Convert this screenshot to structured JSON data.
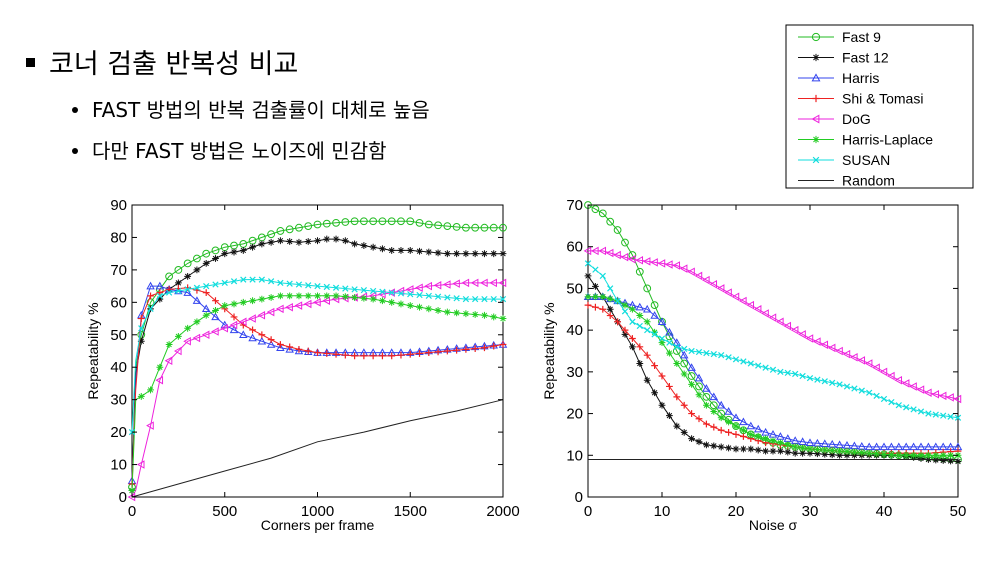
{
  "heading": "코너 검출 반복성 비교",
  "bullets": [
    "FAST 방법의 반복 검출률이 대체로 높음",
    "다만 FAST 방법은 노이즈에 민감함"
  ],
  "legend": [
    {
      "name": "Fast 9",
      "color": "#22bb22",
      "marker": "circle"
    },
    {
      "name": "Fast 12",
      "color": "#111111",
      "marker": "star"
    },
    {
      "name": "Harris",
      "color": "#3344ee",
      "marker": "triangle-up"
    },
    {
      "name": "Shi & Tomasi",
      "color": "#ee2222",
      "marker": "plus"
    },
    {
      "name": "DoG",
      "color": "#ee22dd",
      "marker": "triangle-left"
    },
    {
      "name": "Harris-Laplace",
      "color": "#22cc22",
      "marker": "star"
    },
    {
      "name": "SUSAN",
      "color": "#11dddd",
      "marker": "x"
    },
    {
      "name": "Random",
      "color": "#222222",
      "marker": "none"
    }
  ],
  "chart_data": [
    {
      "type": "line",
      "title": "",
      "xlabel": "Corners per frame",
      "ylabel": "Repeatability %",
      "xlim": [
        0,
        2000
      ],
      "ylim": [
        0,
        90
      ],
      "xticks": [
        0,
        500,
        1000,
        1500,
        2000
      ],
      "yticks": [
        0,
        10,
        20,
        30,
        40,
        50,
        60,
        70,
        80,
        90
      ],
      "series": [
        {
          "name": "Fast 9",
          "x": [
            0,
            20,
            50,
            100,
            200,
            300,
            400,
            500,
            600,
            700,
            800,
            900,
            1000,
            1100,
            1200,
            1300,
            1400,
            1500,
            1600,
            1700,
            1800,
            1900,
            2000
          ],
          "y": [
            3,
            40,
            50,
            60,
            68,
            72,
            75,
            77,
            78,
            80,
            82,
            83,
            84,
            84.5,
            85,
            85,
            85,
            85,
            84,
            83.5,
            83,
            83,
            83
          ]
        },
        {
          "name": "Fast 12",
          "x": [
            0,
            20,
            50,
            100,
            200,
            300,
            400,
            500,
            600,
            700,
            800,
            900,
            1000,
            1050,
            1100,
            1150,
            1200,
            1300,
            1400,
            1500,
            1600,
            1700,
            1800,
            1900,
            2000
          ],
          "y": [
            2,
            38,
            48,
            58,
            64,
            68,
            72,
            75,
            76,
            78,
            79,
            78.5,
            79,
            79.5,
            79.5,
            79,
            78,
            77,
            76,
            76,
            75.5,
            75,
            75,
            75,
            75
          ]
        },
        {
          "name": "Harris",
          "x": [
            0,
            20,
            50,
            100,
            150,
            200,
            300,
            400,
            500,
            600,
            700,
            800,
            900,
            1000,
            1100,
            1200,
            1300,
            1400,
            1500,
            1600,
            1700,
            1800,
            1900,
            2000
          ],
          "y": [
            5,
            35,
            56,
            65,
            65,
            64,
            63,
            58,
            53,
            50,
            48,
            46,
            45,
            44.5,
            44.5,
            44.5,
            44.5,
            44.5,
            44.5,
            45,
            45.5,
            46,
            46.5,
            47
          ]
        },
        {
          "name": "Shi & Tomasi",
          "x": [
            0,
            20,
            50,
            100,
            200,
            300,
            400,
            500,
            600,
            700,
            800,
            900,
            1000,
            1100,
            1200,
            1300,
            1400,
            1500,
            1600,
            1700,
            1800,
            1900,
            2000
          ],
          "y": [
            4,
            33,
            55,
            62,
            64,
            64.5,
            63,
            58,
            53,
            50,
            47,
            45.5,
            44.5,
            44,
            43.5,
            43.5,
            43.5,
            44,
            44.5,
            45,
            45.5,
            46,
            47
          ]
        },
        {
          "name": "DoG",
          "x": [
            0,
            20,
            50,
            100,
            150,
            200,
            300,
            400,
            500,
            600,
            700,
            800,
            900,
            1000,
            1100,
            1200,
            1300,
            1400,
            1500,
            1600,
            1700,
            1800,
            1900,
            2000
          ],
          "y": [
            0,
            2,
            10,
            22,
            36,
            42,
            48,
            50,
            52,
            54,
            56,
            58,
            59,
            60,
            61,
            61.5,
            62,
            63,
            64,
            65,
            65.5,
            66,
            66,
            66
          ]
        },
        {
          "name": "Harris-Laplace",
          "x": [
            0,
            20,
            50,
            100,
            150,
            200,
            300,
            400,
            500,
            600,
            700,
            800,
            900,
            1000,
            1100,
            1200,
            1300,
            1400,
            1500,
            1600,
            1700,
            1800,
            1900,
            2000
          ],
          "y": [
            2,
            30,
            31,
            33,
            40,
            47,
            52,
            56,
            59,
            60,
            61,
            62,
            62,
            62,
            62,
            61.5,
            61,
            60,
            59,
            58,
            57,
            56.5,
            56,
            55
          ]
        },
        {
          "name": "SUSAN",
          "x": [
            0,
            20,
            50,
            100,
            150,
            200,
            300,
            400,
            500,
            600,
            700,
            800,
            900,
            1000,
            1100,
            1200,
            1300,
            1400,
            1500,
            1600,
            1700,
            1800,
            1900,
            2000
          ],
          "y": [
            20,
            42,
            52,
            58,
            62,
            63,
            64,
            65,
            66,
            67,
            67,
            66,
            65.5,
            65,
            64.5,
            64,
            63.5,
            63,
            62.5,
            62,
            61.5,
            61,
            61,
            61
          ]
        },
        {
          "name": "Random",
          "x": [
            0,
            250,
            500,
            750,
            1000,
            1250,
            1500,
            1750,
            2000
          ],
          "y": [
            0,
            4,
            8,
            12,
            17,
            20,
            23.5,
            26.5,
            30
          ]
        }
      ]
    },
    {
      "type": "line",
      "title": "",
      "xlabel": "Noise σ",
      "ylabel": "Repeatability %",
      "xlim": [
        0,
        50
      ],
      "ylim": [
        0,
        70
      ],
      "xticks": [
        0,
        10,
        20,
        30,
        40,
        50
      ],
      "yticks": [
        0,
        10,
        20,
        30,
        40,
        50,
        60,
        70
      ],
      "series": [
        {
          "name": "Fast 9",
          "x": [
            0,
            2,
            4,
            6,
            8,
            10,
            12,
            14,
            16,
            18,
            20,
            22,
            24,
            26,
            28,
            30,
            34,
            38,
            42,
            46,
            50
          ],
          "y": [
            70,
            68,
            64,
            58,
            50,
            42,
            35,
            29,
            24,
            20,
            17,
            15,
            13.5,
            12.5,
            12,
            11.5,
            11,
            10.5,
            10,
            9.5,
            9
          ]
        },
        {
          "name": "Fast 12",
          "x": [
            0,
            2,
            4,
            6,
            8,
            10,
            12,
            14,
            16,
            18,
            20,
            22,
            24,
            26,
            28,
            30,
            34,
            38,
            42,
            46,
            50
          ],
          "y": [
            53,
            48,
            42,
            36,
            28,
            22,
            17,
            14,
            12.5,
            12,
            11.5,
            11.5,
            11,
            11,
            10.5,
            10.5,
            10,
            10,
            10,
            9,
            8.5
          ]
        },
        {
          "name": "Harris",
          "x": [
            0,
            2,
            4,
            6,
            8,
            10,
            12,
            14,
            16,
            18,
            20,
            22,
            24,
            26,
            28,
            30,
            34,
            38,
            42,
            46,
            50
          ],
          "y": [
            48,
            48,
            47,
            46,
            45,
            42,
            37,
            31,
            26,
            22,
            19,
            17,
            15.5,
            14.5,
            13.5,
            13,
            12.5,
            12,
            12,
            12,
            12
          ]
        },
        {
          "name": "Shi & Tomasi",
          "x": [
            0,
            2,
            4,
            6,
            8,
            10,
            12,
            14,
            16,
            18,
            20,
            22,
            24,
            26,
            28,
            30,
            34,
            38,
            42,
            46,
            50
          ],
          "y": [
            46,
            45,
            42,
            38,
            34,
            29,
            24,
            20,
            17.5,
            16,
            15,
            14,
            13,
            12.5,
            12,
            11.5,
            11,
            10.5,
            10.5,
            10.5,
            11
          ]
        },
        {
          "name": "DoG",
          "x": [
            0,
            2,
            4,
            6,
            8,
            10,
            12,
            14,
            16,
            18,
            20,
            22,
            24,
            26,
            28,
            30,
            34,
            38,
            42,
            46,
            50
          ],
          "y": [
            59,
            59,
            58,
            57,
            56.5,
            56,
            55.5,
            54,
            52,
            50,
            48,
            46,
            44,
            42,
            40,
            38,
            35,
            32,
            28,
            25,
            23.5
          ]
        },
        {
          "name": "Harris-Laplace",
          "x": [
            0,
            2,
            4,
            6,
            8,
            10,
            12,
            14,
            16,
            18,
            20,
            22,
            24,
            26,
            28,
            30,
            34,
            38,
            42,
            46,
            50
          ],
          "y": [
            48,
            48,
            47,
            45,
            42,
            37,
            32,
            27,
            22,
            19,
            17,
            15,
            14,
            13,
            12,
            11.5,
            11,
            10.5,
            10,
            10,
            10
          ]
        },
        {
          "name": "SUSAN",
          "x": [
            0,
            2,
            4,
            6,
            8,
            10,
            12,
            14,
            16,
            18,
            20,
            22,
            24,
            26,
            28,
            30,
            34,
            38,
            42,
            46,
            50
          ],
          "y": [
            56,
            53,
            47,
            42,
            40,
            38,
            36,
            35,
            34.5,
            34,
            33,
            32,
            31,
            30,
            29.5,
            28.5,
            27,
            25,
            22,
            20,
            19
          ]
        },
        {
          "name": "Random",
          "x": [
            0,
            50
          ],
          "y": [
            9,
            9
          ]
        }
      ]
    }
  ]
}
